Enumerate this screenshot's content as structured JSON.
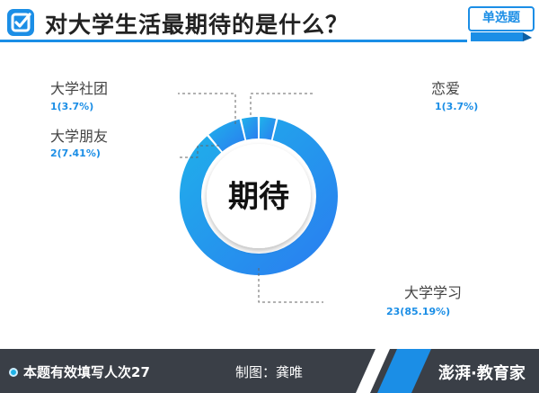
{
  "header": {
    "title": "对大学生活最期待的是什么？",
    "badge": "单选题",
    "icon": "check-icon"
  },
  "chart_data": {
    "type": "pie",
    "variant": "donut",
    "center_label": "期待",
    "categories": [
      "大学学习",
      "恋爱",
      "大学社团",
      "大学朋友"
    ],
    "values": [
      23,
      1,
      1,
      2
    ],
    "percent": [
      85.19,
      3.7,
      3.7,
      7.41
    ],
    "value_labels": [
      "23(85.19%)",
      "1(3.7%)",
      "1(3.7%)",
      "2(7.41%)"
    ],
    "colors": {
      "ring_start": "#1fb2ea",
      "ring_end": "#2a7cf0",
      "accent": "#1b8ee6"
    }
  },
  "footer": {
    "count_text": "本题有效填写人次27",
    "credit": "制图：龚唯",
    "brand": "澎湃·教育家"
  }
}
